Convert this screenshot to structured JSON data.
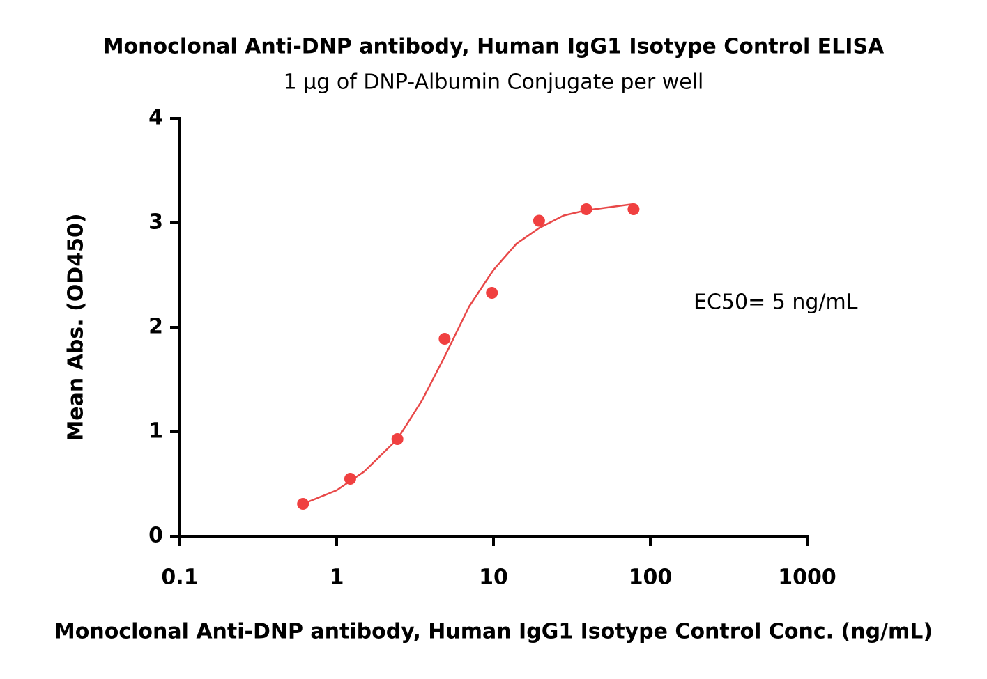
{
  "chart_data": {
    "type": "scatter",
    "title": "Monoclonal Anti-DNP antibody, Human IgG1 Isotype Control ELISA",
    "subtitle": "1 µg of DNP-Albumin Conjugate per well",
    "x_label": "Monoclonal Anti-DNP antibody, Human IgG1 Isotype Control Conc. (ng/mL)",
    "y_label": "Mean Abs. (OD450)",
    "annotation": "EC50= 5 ng/mL",
    "x": [
      0.61,
      1.22,
      2.44,
      4.88,
      9.77,
      19.53,
      39.06,
      78.13
    ],
    "values": [
      0.31,
      0.55,
      0.93,
      1.89,
      2.33,
      3.02,
      3.13,
      3.13
    ],
    "color": "#f04040",
    "fit": {
      "x": [
        0.61,
        1,
        1.5,
        2.44,
        3.5,
        4.88,
        7,
        10,
        14,
        19.53,
        28,
        39.06,
        78.13
      ],
      "y": [
        0.31,
        0.44,
        0.62,
        0.93,
        1.3,
        1.72,
        2.2,
        2.55,
        2.8,
        2.95,
        3.07,
        3.12,
        3.18
      ],
      "color": "#e84848"
    },
    "xscale": "log",
    "xlim": [
      0.1,
      1000
    ],
    "xticks": [
      0.1,
      1,
      10,
      100,
      1000
    ],
    "ylim": [
      0,
      4
    ],
    "yticks": [
      0,
      1,
      2,
      3,
      4
    ]
  }
}
